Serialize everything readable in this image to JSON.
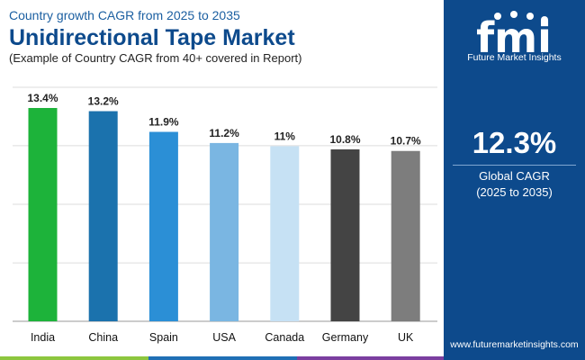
{
  "header": {
    "subtitle": "Country growth CAGR from 2025 to 2035",
    "title": "Unidirectional Tape Market",
    "note": "(Example of Country CAGR from 40+ covered in Report)"
  },
  "chart_data": {
    "type": "bar",
    "categories": [
      "India",
      "China",
      "Spain",
      "USA",
      "Canada",
      "Germany",
      "UK"
    ],
    "values": [
      13.4,
      13.2,
      11.9,
      11.2,
      11,
      10.8,
      10.7
    ],
    "labels": [
      "13.4%",
      "13.2%",
      "11.9%",
      "11.2%",
      "11%",
      "10.8%",
      "10.7%"
    ],
    "colors": [
      "#1db33a",
      "#1b72ad",
      "#2b8fd6",
      "#7ab6e2",
      "#c6e1f4",
      "#444444",
      "#7d7d7d"
    ],
    "ylim": [
      0,
      14.7
    ],
    "gridlines": [
      3.67,
      7.35,
      11.03,
      14.7
    ],
    "title": "Country growth CAGR from 2025 to 2035",
    "xlabel": "",
    "ylabel": ""
  },
  "side_panel": {
    "brand": "Future Market Insights",
    "global_value": "12.3%",
    "global_label": "Global CAGR",
    "global_period": "(2025 to 2035)",
    "website": "www.futuremarketinsights.com",
    "background": "#0d4a8c"
  },
  "footer_colors": [
    "#8dc63f",
    "#1f6fb5",
    "#7b3fa0"
  ]
}
